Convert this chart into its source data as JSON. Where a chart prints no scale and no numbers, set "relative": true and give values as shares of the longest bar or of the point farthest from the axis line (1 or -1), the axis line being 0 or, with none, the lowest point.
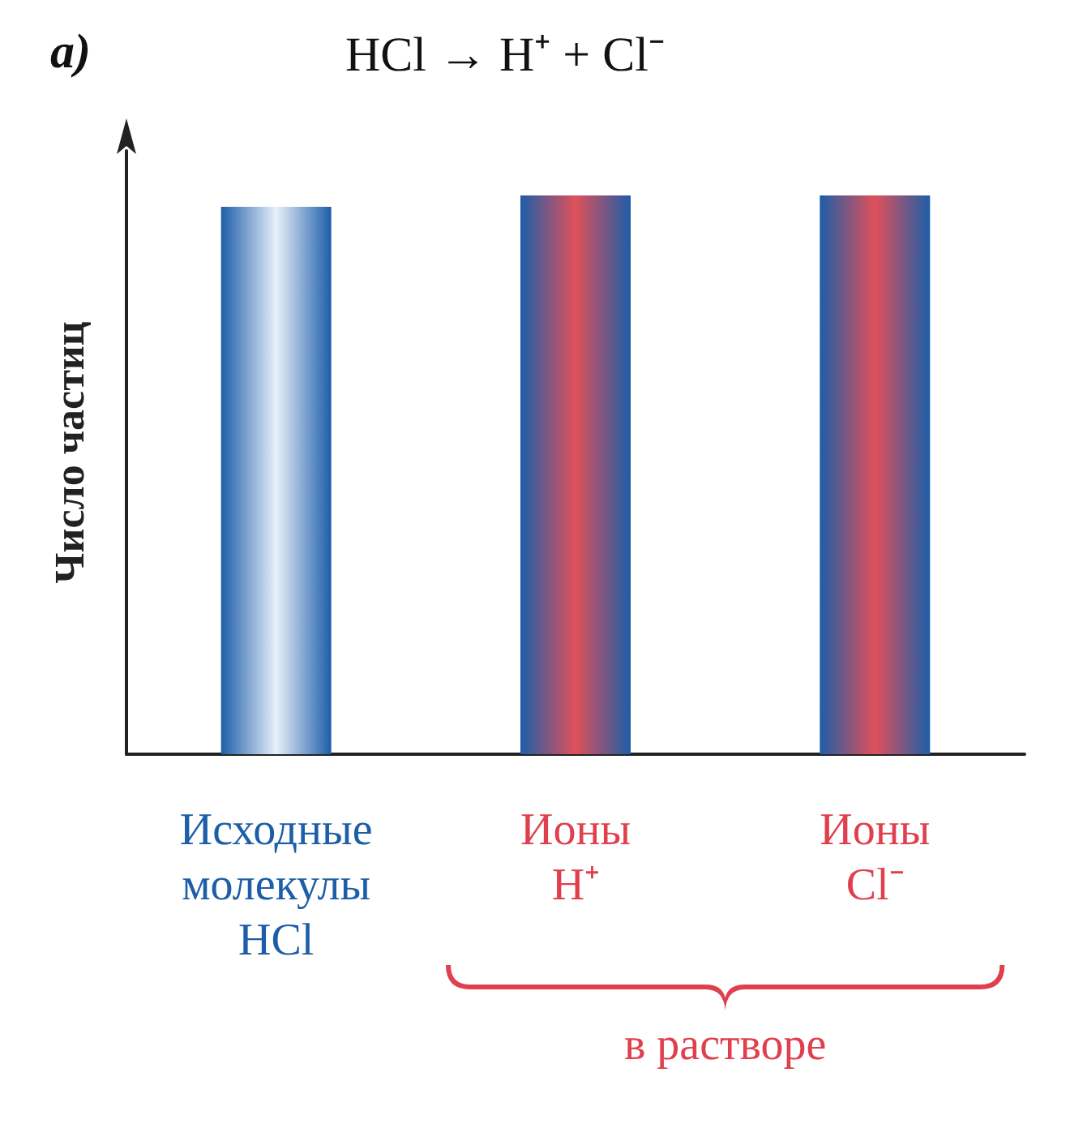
{
  "chart_data": {
    "type": "bar",
    "title": "а)",
    "subtitle": "HCl → H⁺ + Cl⁻",
    "ylabel": "Число частиц",
    "relative": true,
    "categories": [
      "Исходные\nмолекулы\nHCl",
      "Ионы\nH⁺",
      "Ионы\nCl⁻"
    ],
    "values": [
      0.98,
      1,
      1
    ],
    "colors": [
      "#e8f0fa",
      "#e0505a",
      "#e0505a"
    ],
    "annotations": [
      "в растворе"
    ],
    "grid": false
  }
}
